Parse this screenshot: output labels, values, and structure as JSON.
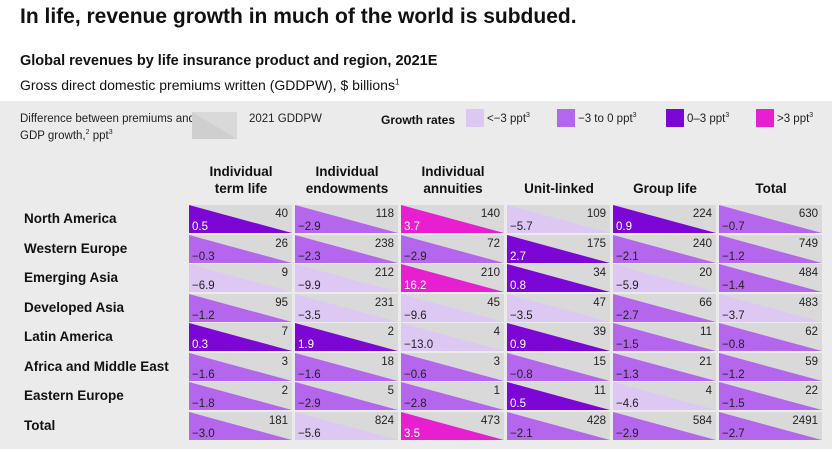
{
  "headline": "In life, revenue growth in much of the world is subdued.",
  "subtitle": "Global revenues by life insurance product and region, 2021E",
  "measure_label": "Gross direct domestic premiums written (GDDPW), $ billions",
  "measure_footnote": "1",
  "legend": {
    "difference_label": "Difference between premiums and GDP growth,",
    "difference_footnote": "2",
    "difference_unit": "ppt",
    "difference_unit_footnote": "3",
    "gddpw_label": "2021 GDDPW",
    "growth_rates_title": "Growth rates",
    "swatch_color": "#d9d9d9",
    "items": [
      {
        "label": "<−3 ppt",
        "footnote": "3",
        "color": "#dcc8f2"
      },
      {
        "label": "−3 to 0 ppt",
        "footnote": "3",
        "color": "#b467ec"
      },
      {
        "label": "0–3 ppt",
        "footnote": "3",
        "color": "#7b06d6"
      },
      {
        "label": ">3 ppt",
        "footnote": "3",
        "color": "#e81fd1"
      }
    ]
  },
  "chart_data": {
    "type": "table",
    "columns": [
      "Individual term life",
      "Individual endowments",
      "Individual annuities",
      "Unit-linked",
      "Group life",
      "Total"
    ],
    "column_lines": [
      [
        "Individual",
        "term life"
      ],
      [
        "Individual",
        "endowments"
      ],
      [
        "Individual",
        "annuities"
      ],
      [
        "Unit-linked"
      ],
      [
        "Group life"
      ],
      [
        "Total"
      ]
    ],
    "rows": [
      {
        "region": "North America",
        "gddpw": [
          40,
          118,
          140,
          109,
          224,
          630
        ],
        "difference": [
          0.5,
          -2.9,
          3.7,
          -5.7,
          0.9,
          -0.7
        ],
        "growth_bin": [
          3,
          2,
          4,
          1,
          3,
          2
        ]
      },
      {
        "region": "Western Europe",
        "gddpw": [
          26,
          238,
          72,
          175,
          240,
          749
        ],
        "difference": [
          -0.3,
          -2.3,
          -2.9,
          2.7,
          -2.1,
          -1.2
        ],
        "growth_bin": [
          2,
          2,
          2,
          3,
          2,
          2
        ]
      },
      {
        "region": "Emerging Asia",
        "gddpw": [
          9,
          212,
          210,
          34,
          20,
          484
        ],
        "difference": [
          -6.9,
          -9.9,
          16.2,
          0.8,
          -5.9,
          -1.4
        ],
        "growth_bin": [
          1,
          1,
          4,
          3,
          1,
          2
        ]
      },
      {
        "region": "Developed Asia",
        "gddpw": [
          95,
          231,
          45,
          47,
          66,
          483
        ],
        "difference": [
          -1.2,
          -3.5,
          -9.6,
          -3.5,
          -2.7,
          -3.7
        ],
        "growth_bin": [
          2,
          1,
          1,
          1,
          2,
          1
        ]
      },
      {
        "region": "Latin America",
        "gddpw": [
          7,
          2,
          4,
          39,
          11,
          62
        ],
        "difference": [
          0.3,
          1.9,
          -13.0,
          0.9,
          -1.5,
          -0.8
        ],
        "growth_bin": [
          3,
          3,
          1,
          3,
          2,
          2
        ]
      },
      {
        "region": "Africa and Middle East",
        "gddpw": [
          3,
          18,
          3,
          15,
          21,
          59
        ],
        "difference": [
          -1.6,
          -1.6,
          -0.6,
          -0.8,
          -1.3,
          -1.2
        ],
        "growth_bin": [
          2,
          2,
          2,
          2,
          2,
          2
        ]
      },
      {
        "region": "Eastern Europe",
        "gddpw": [
          2,
          5,
          1,
          11,
          4,
          22
        ],
        "difference": [
          -1.8,
          -2.9,
          -2.8,
          0.5,
          -4.6,
          -1.5
        ],
        "growth_bin": [
          2,
          2,
          2,
          3,
          1,
          2
        ]
      },
      {
        "region": "Total",
        "gddpw": [
          181,
          824,
          473,
          428,
          584,
          2491
        ],
        "difference": [
          -3.0,
          -5.6,
          3.5,
          -2.1,
          -2.9,
          -2.7
        ],
        "growth_bin": [
          2,
          1,
          4,
          2,
          2,
          2
        ]
      }
    ],
    "difference_display": [
      [
        "0.5",
        "−2.9",
        "3.7",
        "−5.7",
        "0.9",
        "−0.7"
      ],
      [
        "−0.3",
        "−2.3",
        "−2.9",
        "2.7",
        "−2.1",
        "−1.2"
      ],
      [
        "−6.9",
        "−9.9",
        "16.2",
        "0.8",
        "−5.9",
        "−1.4"
      ],
      [
        "−1.2",
        "−3.5",
        "−9.6",
        "−3.5",
        "−2.7",
        "−3.7"
      ],
      [
        "0.3",
        "1.9",
        "−13.0",
        "0.9",
        "−1.5",
        "−0.8"
      ],
      [
        "−1.6",
        "−1.6",
        "−0.6",
        "−0.8",
        "−1.3",
        "−1.2"
      ],
      [
        "−1.8",
        "−2.9",
        "−2.8",
        "0.5",
        "−4.6",
        "−1.5"
      ],
      [
        "−3.0",
        "−5.6",
        "3.5",
        "−2.1",
        "−2.9",
        "−2.7"
      ]
    ],
    "bin_colors": [
      "#dcc8f2",
      "#b467ec",
      "#7b06d6",
      "#e81fd1"
    ],
    "cell_background": "#d9d9d9"
  }
}
